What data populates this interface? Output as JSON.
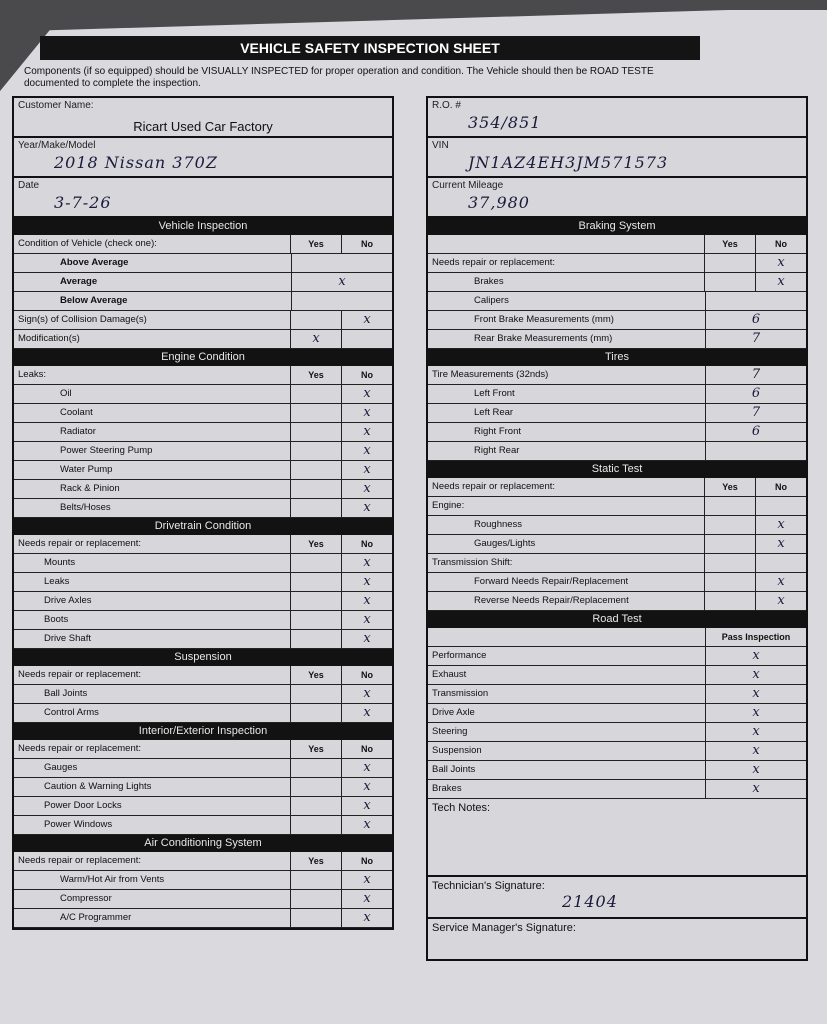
{
  "title": "VEHICLE SAFETY INSPECTION SHEET",
  "intro": "Components (if so equipped) should be VISUALLY INSPECTED for proper operation and condition. The Vehicle should then be ROAD TESTE documented to complete the inspection.",
  "left_info": [
    {
      "label": "Customer Name:",
      "value": "Ricart Used Car Factory",
      "style": "typed"
    },
    {
      "label": "Year/Make/Model",
      "value": "2018   Nissan   370Z",
      "style": "hand"
    },
    {
      "label": "Date",
      "value": "3-7-26",
      "style": "hand"
    }
  ],
  "right_info": [
    {
      "label": "R.O. #",
      "value": "354/851",
      "style": "hand"
    },
    {
      "label": "VIN",
      "value": "JN1AZ4EH3JM571573",
      "style": "hand"
    },
    {
      "label": "Current Mileage",
      "value": "37,980",
      "style": "hand"
    }
  ],
  "left_sections": [
    {
      "title": "Vehicle Inspection",
      "header": "Condition of Vehicle (check one):",
      "cols": [
        "Yes",
        "No"
      ],
      "rows": [
        {
          "label": "Above Average",
          "indent": 2,
          "bold": true,
          "merged": true,
          "mark": ""
        },
        {
          "label": "Average",
          "indent": 2,
          "bold": true,
          "merged": true,
          "mark": "x"
        },
        {
          "label": "Below Average",
          "indent": 2,
          "bold": true,
          "merged": true,
          "mark": ""
        },
        {
          "label": "Sign(s) of Collision Damage(s)",
          "yes": "",
          "no": "x"
        },
        {
          "label": "Modification(s)",
          "yes": "x",
          "no": ""
        }
      ]
    },
    {
      "title": "Engine Condition",
      "header": "Leaks:",
      "cols": [
        "Yes",
        "No"
      ],
      "rows": [
        {
          "label": "Oil",
          "indent": 2,
          "yes": "",
          "no": "x"
        },
        {
          "label": "Coolant",
          "indent": 2,
          "yes": "",
          "no": "x"
        },
        {
          "label": "Radiator",
          "indent": 2,
          "yes": "",
          "no": "x"
        },
        {
          "label": "Power Steering Pump",
          "indent": 2,
          "yes": "",
          "no": "x"
        },
        {
          "label": "Water Pump",
          "indent": 2,
          "yes": "",
          "no": "x"
        },
        {
          "label": "Rack & Pinion",
          "indent": 2,
          "yes": "",
          "no": "x"
        },
        {
          "label": "Belts/Hoses",
          "indent": 2,
          "yes": "",
          "no": "x"
        }
      ]
    },
    {
      "title": "Drivetrain Condition",
      "header": "Needs repair or replacement:",
      "cols": [
        "Yes",
        "No"
      ],
      "rows": [
        {
          "label": "Mounts",
          "indent": 1,
          "yes": "",
          "no": "x"
        },
        {
          "label": "Leaks",
          "indent": 1,
          "yes": "",
          "no": "x"
        },
        {
          "label": "Drive Axles",
          "indent": 1,
          "yes": "",
          "no": "x"
        },
        {
          "label": "Boots",
          "indent": 1,
          "yes": "",
          "no": "x"
        },
        {
          "label": "Drive Shaft",
          "indent": 1,
          "yes": "",
          "no": "x"
        }
      ]
    },
    {
      "title": "Suspension",
      "header": "Needs repair or replacement:",
      "cols": [
        "Yes",
        "No"
      ],
      "rows": [
        {
          "label": "Ball Joints",
          "indent": 1,
          "yes": "",
          "no": "x"
        },
        {
          "label": "Control Arms",
          "indent": 1,
          "yes": "",
          "no": "x"
        }
      ]
    },
    {
      "title": "Interior/Exterior Inspection",
      "header": "Needs repair or replacement:",
      "cols": [
        "Yes",
        "No"
      ],
      "rows": [
        {
          "label": "Gauges",
          "indent": 1,
          "yes": "",
          "no": "x"
        },
        {
          "label": "Caution & Warning Lights",
          "indent": 1,
          "yes": "",
          "no": "x"
        },
        {
          "label": "Power Door Locks",
          "indent": 1,
          "yes": "",
          "no": "x"
        },
        {
          "label": "Power Windows",
          "indent": 1,
          "yes": "",
          "no": "x"
        }
      ]
    },
    {
      "title": "Air Conditioning System",
      "header": "Needs repair or replacement:",
      "cols": [
        "Yes",
        "No"
      ],
      "rows": [
        {
          "label": "Warm/Hot Air from Vents",
          "indent": 2,
          "yes": "",
          "no": "x"
        },
        {
          "label": "Compressor",
          "indent": 2,
          "yes": "",
          "no": "x"
        },
        {
          "label": "A/C Programmer",
          "indent": 2,
          "yes": "",
          "no": "x"
        }
      ]
    }
  ],
  "right_sections": [
    {
      "title": "Braking System",
      "header": "Needs repair or replacement:",
      "cols": [
        "Yes",
        "No"
      ],
      "header_no": "x",
      "rows": [
        {
          "label": "Brakes",
          "indent": 2,
          "yes": "",
          "no": "x"
        },
        {
          "label": "Calipers",
          "indent": 2,
          "merged": true,
          "mark": ""
        },
        {
          "label": "Front Brake Measurements (mm)",
          "indent": 2,
          "merged": true,
          "mark": "6"
        },
        {
          "label": "Rear Brake Measurements (mm)",
          "indent": 2,
          "merged": true,
          "mark": "7"
        }
      ]
    },
    {
      "title": "Tires",
      "header": "Tire Measurements (32nds)",
      "cols": [],
      "header_merged": "7",
      "rows": [
        {
          "label": "Left Front",
          "indent": 2,
          "merged": true,
          "mark": "6"
        },
        {
          "label": "Left Rear",
          "indent": 2,
          "merged": true,
          "mark": "7"
        },
        {
          "label": "Right Front",
          "indent": 2,
          "merged": true,
          "mark": "6"
        },
        {
          "label": "Right Rear",
          "indent": 2,
          "merged": true,
          "mark": ""
        }
      ]
    },
    {
      "title": "Static Test",
      "header": "Needs repair or replacement:",
      "cols": [
        "Yes",
        "No"
      ],
      "rows": [
        {
          "label": "Engine:",
          "indent": 0,
          "yes": "",
          "no": ""
        },
        {
          "label": "Roughness",
          "indent": 2,
          "yes": "",
          "no": "x"
        },
        {
          "label": "Gauges/Lights",
          "indent": 2,
          "yes": "",
          "no": "x"
        },
        {
          "label": "Transmission Shift:",
          "indent": 0,
          "yes": "",
          "no": ""
        },
        {
          "label": "Forward Needs Repair/Replacement",
          "indent": 2,
          "yes": "",
          "no": "x"
        },
        {
          "label": "Reverse Needs Repair/Replacement",
          "indent": 2,
          "yes": "",
          "no": "x"
        }
      ]
    },
    {
      "title": "Road Test",
      "header": "",
      "cols": [
        "Pass Inspection"
      ],
      "rows": [
        {
          "label": "Performance",
          "merged": true,
          "mark": "x"
        },
        {
          "label": "Exhaust",
          "merged": true,
          "mark": "x"
        },
        {
          "label": "Transmission",
          "merged": true,
          "mark": "x"
        },
        {
          "label": "Drive Axle",
          "merged": true,
          "mark": "x"
        },
        {
          "label": "Steering",
          "merged": true,
          "mark": "x"
        },
        {
          "label": "Suspension",
          "merged": true,
          "mark": "x"
        },
        {
          "label": "Ball Joints",
          "merged": true,
          "mark": "x"
        },
        {
          "label": "Brakes",
          "merged": true,
          "mark": "x"
        }
      ]
    }
  ],
  "footer": {
    "tech_notes_label": "Tech Notes:",
    "tech_signature_label": "Technician's Signature:",
    "tech_signature_value": "21404",
    "manager_signature_label": "Service Manager's Signature:"
  }
}
